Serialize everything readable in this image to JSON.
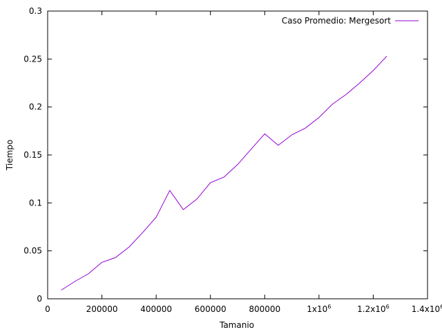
{
  "chart_data": {
    "type": "line",
    "title": "",
    "xlabel": "Tamanio",
    "ylabel": "Tiempo",
    "xlim": [
      0,
      1400000
    ],
    "ylim": [
      0,
      0.3
    ],
    "grid": false,
    "legend_position": "top-right",
    "x_ticks": [
      {
        "value": 0,
        "label": "0",
        "sup": ""
      },
      {
        "value": 200000,
        "label": "200000",
        "sup": ""
      },
      {
        "value": 400000,
        "label": "400000",
        "sup": ""
      },
      {
        "value": 600000,
        "label": "600000",
        "sup": ""
      },
      {
        "value": 800000,
        "label": "800000",
        "sup": ""
      },
      {
        "value": 1000000,
        "label": "1x10",
        "sup": "6"
      },
      {
        "value": 1200000,
        "label": "1.2x10",
        "sup": "6"
      },
      {
        "value": 1400000,
        "label": "1.4x10",
        "sup": "6"
      }
    ],
    "y_ticks": [
      {
        "value": 0,
        "label": "0"
      },
      {
        "value": 0.05,
        "label": "0.05"
      },
      {
        "value": 0.1,
        "label": "0.1"
      },
      {
        "value": 0.15,
        "label": "0.15"
      },
      {
        "value": 0.2,
        "label": "0.2"
      },
      {
        "value": 0.25,
        "label": "0.25"
      },
      {
        "value": 0.3,
        "label": "0.3"
      }
    ],
    "series": [
      {
        "name": "Caso Promedio: Mergesort",
        "color": "#9400d3",
        "x": [
          50000,
          100000,
          150000,
          200000,
          250000,
          300000,
          350000,
          400000,
          450000,
          500000,
          550000,
          600000,
          650000,
          700000,
          750000,
          800000,
          850000,
          900000,
          950000,
          1000000,
          1050000,
          1100000,
          1150000,
          1200000,
          1250000
        ],
        "y": [
          0.009,
          0.018,
          0.026,
          0.038,
          0.043,
          0.054,
          0.069,
          0.085,
          0.113,
          0.093,
          0.104,
          0.121,
          0.127,
          0.14,
          0.156,
          0.172,
          0.16,
          0.171,
          0.178,
          0.189,
          0.203,
          0.213,
          0.225,
          0.238,
          0.253
        ]
      }
    ]
  }
}
